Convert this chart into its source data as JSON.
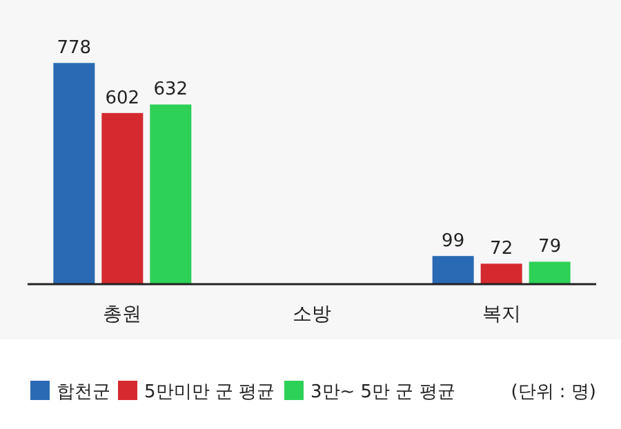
{
  "chart_data": {
    "type": "bar",
    "categories": [
      "총원",
      "소방",
      "복지"
    ],
    "series": [
      {
        "name": "합천군",
        "color": "#2a6ab4",
        "values": [
          778,
          null,
          99
        ]
      },
      {
        "name": "5만미만 군 평균",
        "color": "#d42a2f",
        "values": [
          602,
          null,
          72
        ]
      },
      {
        "name": "3만~ 5만 군 평균",
        "color": "#2ed158",
        "values": [
          632,
          null,
          79
        ]
      }
    ],
    "data_labels": true,
    "legend": "bottom",
    "annotations": [
      "(단위 : 명)"
    ]
  }
}
